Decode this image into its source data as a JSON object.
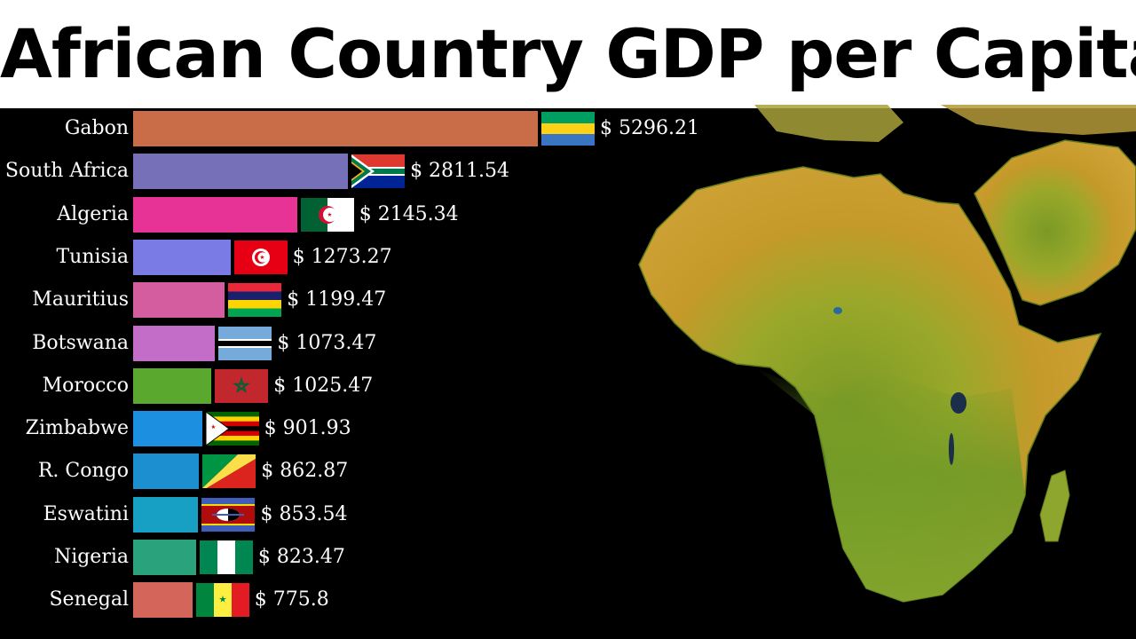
{
  "title": "African Country GDP per Capita",
  "chart_data": {
    "type": "bar",
    "orientation": "horizontal",
    "title": "African Country GDP per Capita",
    "value_prefix": "$ ",
    "categories": [
      "Gabon",
      "South Africa",
      "Algeria",
      "Tunisia",
      "Mauritius",
      "Botswana",
      "Morocco",
      "Zimbabwe",
      "R. Congo",
      "Eswatini",
      "Nigeria",
      "Senegal"
    ],
    "values": [
      5296.21,
      2811.54,
      2145.34,
      1273.27,
      1199.47,
      1073.47,
      1025.47,
      901.93,
      862.87,
      853.54,
      823.47,
      775.8
    ],
    "value_labels": [
      "$ 5296.21",
      "$ 2811.54",
      "$ 2145.34",
      "$ 1273.27",
      "$ 1199.47",
      "$ 1073.47",
      "$ 1025.47",
      "$ 901.93",
      "$ 862.87",
      "$ 853.54",
      "$ 823.47",
      "$ 775.8"
    ],
    "colors": [
      "#c96d48",
      "#7570b8",
      "#e63395",
      "#7b7be6",
      "#d35d9e",
      "#c36cc8",
      "#5ba82e",
      "#1d8fe0",
      "#1c8fd0",
      "#179fc4",
      "#2aa27c",
      "#d4655a"
    ],
    "flags": [
      "flag-gabon-icon",
      "flag-south-africa-icon",
      "flag-algeria-icon",
      "flag-tunisia-icon",
      "flag-mauritius-icon",
      "flag-botswana-icon",
      "flag-morocco-icon",
      "flag-zimbabwe-icon",
      "flag-congo-icon",
      "flag-eswatini-icon",
      "flag-nigeria-icon",
      "flag-senegal-icon"
    ],
    "xlabel": "",
    "ylabel": "",
    "xlim": [
      0,
      5296.21
    ],
    "grid": false,
    "legend": "none",
    "background": "#000000"
  },
  "map": {
    "icon": "africa-map-icon"
  }
}
